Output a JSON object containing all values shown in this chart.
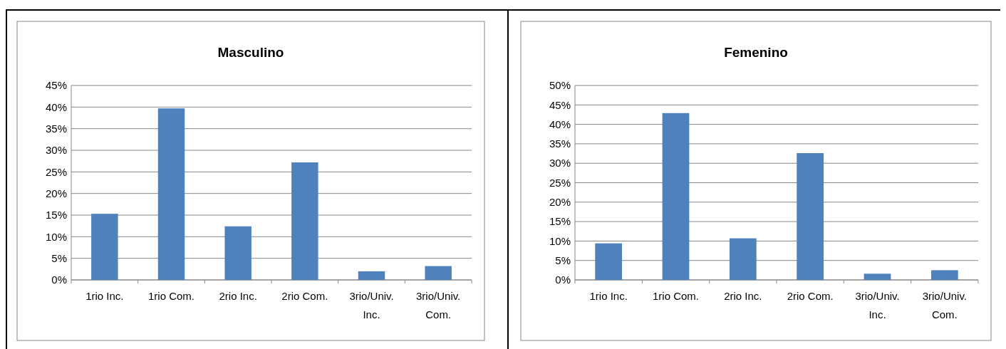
{
  "chart_data": [
    {
      "type": "bar",
      "title": "Masculino",
      "categories": [
        "1rio Inc.",
        "1rio Com.",
        "2rio Inc.",
        "2rio Com.",
        "3rio/Univ. Inc.",
        "3rio/Univ. Com."
      ],
      "values": [
        15.3,
        39.7,
        12.4,
        27.2,
        2.0,
        3.2
      ],
      "color": "#4f81bd",
      "ylim": [
        0,
        45
      ],
      "yticks": [
        {
          "value": 0,
          "label": "0%"
        },
        {
          "value": 5,
          "label": "5%"
        },
        {
          "value": 10,
          "label": "10%"
        },
        {
          "value": 15,
          "label": "15%"
        },
        {
          "value": 20,
          "label": "20%"
        },
        {
          "value": 25,
          "label": "25%"
        },
        {
          "value": 30,
          "label": "30%"
        },
        {
          "value": 35,
          "label": "35%"
        },
        {
          "value": 40,
          "label": "40%"
        },
        {
          "value": 45,
          "label": "45%"
        }
      ],
      "grid": "y"
    },
    {
      "type": "bar",
      "title": "Femenino",
      "categories": [
        "1rio Inc.",
        "1rio Com.",
        "2rio Inc.",
        "2rio Com.",
        "3rio/Univ. Inc.",
        "3rio/Univ. Com."
      ],
      "values": [
        9.4,
        42.9,
        10.7,
        32.6,
        1.6,
        2.5
      ],
      "color": "#4f81bd",
      "ylim": [
        0,
        50
      ],
      "yticks": [
        {
          "value": 0,
          "label": "0%"
        },
        {
          "value": 5,
          "label": "5%"
        },
        {
          "value": 10,
          "label": "10%"
        },
        {
          "value": 15,
          "label": "15%"
        },
        {
          "value": 20,
          "label": "20%"
        },
        {
          "value": 25,
          "label": "25%"
        },
        {
          "value": 30,
          "label": "30%"
        },
        {
          "value": 35,
          "label": "35%"
        },
        {
          "value": 40,
          "label": "40%"
        },
        {
          "value": 45,
          "label": "45%"
        },
        {
          "value": 50,
          "label": "50%"
        }
      ],
      "grid": "y"
    }
  ]
}
